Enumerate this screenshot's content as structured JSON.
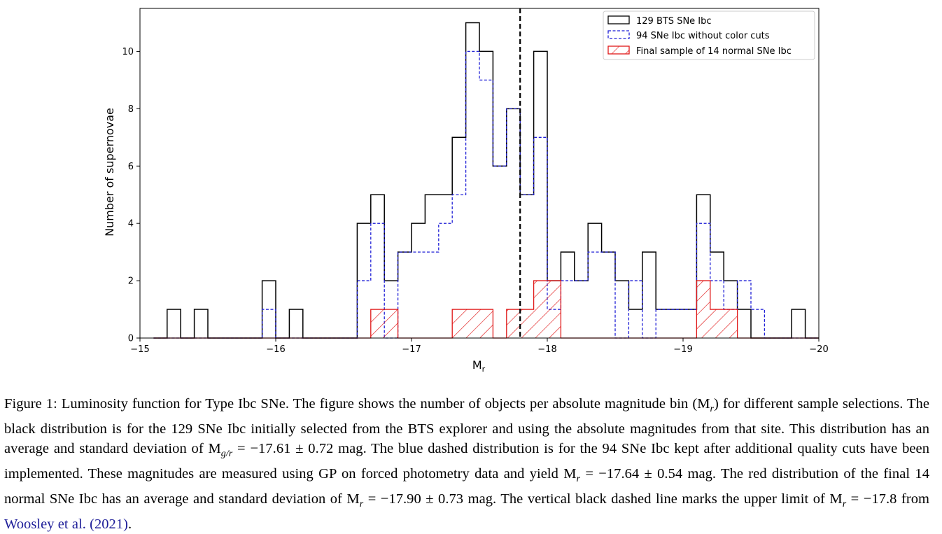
{
  "chart_data": {
    "type": "histogram",
    "xlabel": "M",
    "xlabel_sub": "r",
    "ylabel": "Number of supernovae",
    "xlim": [
      -15,
      -20
    ],
    "ylim": [
      0,
      11.5
    ],
    "bin_edges_start": -15.1,
    "bin_width": 0.1,
    "xticks": [
      -15,
      -16,
      -17,
      -18,
      -19,
      -20
    ],
    "xtick_labels": [
      "−15",
      "−16",
      "−17",
      "−18",
      "−19",
      "−20"
    ],
    "yticks": [
      0,
      2,
      4,
      6,
      8,
      10
    ],
    "ytick_labels": [
      "0",
      "2",
      "4",
      "6",
      "8",
      "10"
    ],
    "vline": {
      "x": -17.8,
      "color": "#000000",
      "style": "dashed"
    },
    "legend_position": "upper right",
    "series": [
      {
        "name": "129 BTS SNe Ibc",
        "color": "#000000",
        "style": "solid-step",
        "values": [
          0,
          1,
          0,
          1,
          0,
          0,
          0,
          0,
          2,
          0,
          1,
          0,
          0,
          0,
          0,
          4,
          5,
          2,
          3,
          4,
          5,
          5,
          7,
          11,
          10,
          6,
          8,
          5,
          10,
          2,
          3,
          2,
          4,
          3,
          2,
          1,
          3,
          1,
          1,
          1,
          5,
          3,
          2,
          1,
          0,
          0,
          0,
          1,
          0
        ]
      },
      {
        "name": "94 SNe Ibc without color cuts",
        "color": "#1f1fd6",
        "style": "dashed-step",
        "values": [
          0,
          0,
          0,
          0,
          0,
          0,
          0,
          0,
          1,
          0,
          0,
          0,
          0,
          0,
          0,
          2,
          4,
          0,
          3,
          3,
          3,
          4,
          5,
          10,
          9,
          6,
          8,
          5,
          7,
          1,
          2,
          2,
          3,
          3,
          0,
          2,
          0,
          1,
          1,
          1,
          4,
          2,
          1,
          2,
          1,
          0,
          0,
          0,
          0
        ]
      },
      {
        "name": "Final sample of 14 normal SNe Ibc",
        "color": "#e01818",
        "style": "hatched-step",
        "values": [
          0,
          0,
          0,
          0,
          0,
          0,
          0,
          0,
          0,
          0,
          0,
          0,
          0,
          0,
          0,
          0,
          1,
          1,
          0,
          0,
          0,
          0,
          1,
          1,
          1,
          0,
          1,
          1,
          2,
          2,
          0,
          0,
          0,
          0,
          0,
          0,
          0,
          0,
          0,
          0,
          2,
          1,
          1,
          0,
          0,
          0,
          0,
          0,
          0
        ]
      }
    ]
  },
  "caption": {
    "figure_label": "Figure 1:",
    "text_1": " Luminosity function for Type Ibc SNe. The figure shows the number of objects per absolute magnitude bin (M",
    "sub_r1": "r",
    "text_2": ") for different sample selections. The black distribution is for the 129 SNe Ibc initially selected from the BTS explorer and using the absolute magnitudes from that site. This distribution has an average and standard deviation of M",
    "sub_gr": "g/r",
    "text_3": " = −17.61 ± 0.72 mag. The blue dashed distribution is for the 94 SNe Ibc kept after additional quality cuts have been implemented. These magnitudes are measured using GP on forced photometry data and yield M",
    "sub_r2": "r",
    "text_4": " = −17.64 ± 0.54 mag. The red distribution of the final 14 normal SNe Ibc has an average and standard deviation of M",
    "sub_r3": "r",
    "text_5": " = −17.90 ± 0.73 mag. The vertical black dashed line marks the upper limit of M",
    "sub_r4": "r",
    "text_6": " = −17.8 from ",
    "citation": "Woosley et al. (2021)",
    "text_7": "."
  }
}
